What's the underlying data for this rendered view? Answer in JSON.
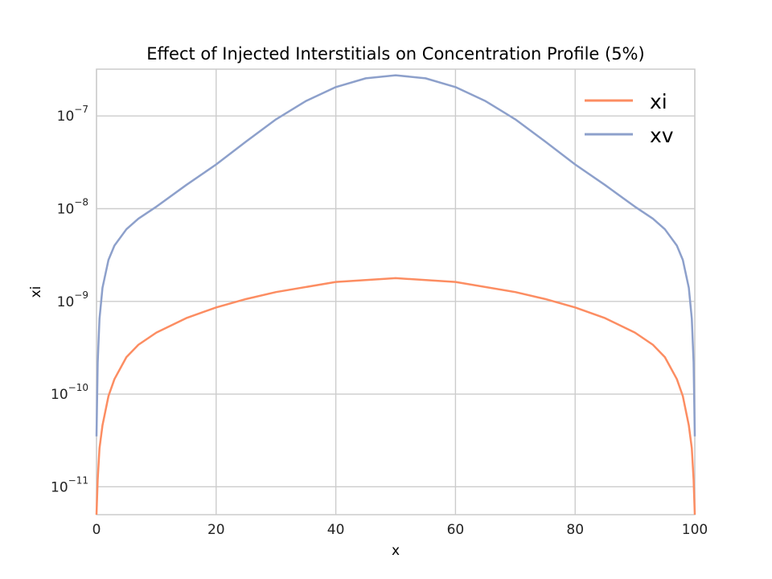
{
  "chart_data": {
    "type": "line",
    "title": "Effect of Injected Interstitials on Concentration Profile (5%)",
    "xlabel": "x",
    "ylabel": "xi",
    "xlim": [
      0,
      100
    ],
    "ylim": [
      5e-12,
      3.2e-07
    ],
    "yscale": "log",
    "grid": true,
    "legend_position": "top-right",
    "x_ticks": [
      "0",
      "20",
      "40",
      "60",
      "80",
      "100"
    ],
    "y_ticks": [
      {
        "base": "10",
        "exponent": "−11",
        "value": 1e-11
      },
      {
        "base": "10",
        "exponent": "−10",
        "value": 1e-10
      },
      {
        "base": "10",
        "exponent": "−9",
        "value": 1e-09
      },
      {
        "base": "10",
        "exponent": "−8",
        "value": 1e-08
      },
      {
        "base": "10",
        "exponent": "−7",
        "value": 1e-07
      }
    ],
    "series": [
      {
        "name": "xi",
        "color": "#fc8d62",
        "x": [
          0,
          0.2,
          0.5,
          1,
          2,
          3,
          5,
          7,
          10,
          15,
          20,
          25,
          30,
          40,
          50,
          60,
          70,
          75,
          80,
          85,
          90,
          93,
          95,
          97,
          98,
          99,
          99.5,
          99.8,
          100
        ],
        "y": [
          5e-12,
          1.2e-11,
          2.6e-11,
          4.6e-11,
          9.5e-11,
          1.45e-10,
          2.5e-10,
          3.4e-10,
          4.6e-10,
          6.6e-10,
          8.6e-10,
          1.06e-09,
          1.26e-09,
          1.62e-09,
          1.78e-09,
          1.62e-09,
          1.26e-09,
          1.06e-09,
          8.6e-10,
          6.6e-10,
          4.6e-10,
          3.4e-10,
          2.5e-10,
          1.45e-10,
          9.5e-11,
          4.6e-11,
          2.6e-11,
          1.2e-11,
          5e-12
        ]
      },
      {
        "name": "xv",
        "color": "#8da0cb",
        "x": [
          0,
          0.2,
          0.5,
          1,
          2,
          3,
          5,
          7,
          10,
          15,
          20,
          25,
          30,
          35,
          40,
          45,
          50,
          55,
          60,
          65,
          70,
          75,
          80,
          85,
          90,
          93,
          95,
          97,
          98,
          99,
          99.5,
          99.8,
          100
        ],
        "y": [
          3.5e-11,
          2.2e-10,
          6.5e-10,
          1.4e-09,
          2.8e-09,
          4e-09,
          6e-09,
          7.8e-09,
          1.05e-08,
          1.8e-08,
          3e-08,
          5.3e-08,
          9.2e-08,
          1.45e-07,
          2.05e-07,
          2.55e-07,
          2.75e-07,
          2.55e-07,
          2.05e-07,
          1.45e-07,
          9.2e-08,
          5.3e-08,
          3e-08,
          1.8e-08,
          1.05e-08,
          7.8e-09,
          6e-09,
          4e-09,
          2.8e-09,
          1.4e-09,
          6.5e-10,
          2.2e-10,
          3.5e-11
        ]
      }
    ]
  }
}
